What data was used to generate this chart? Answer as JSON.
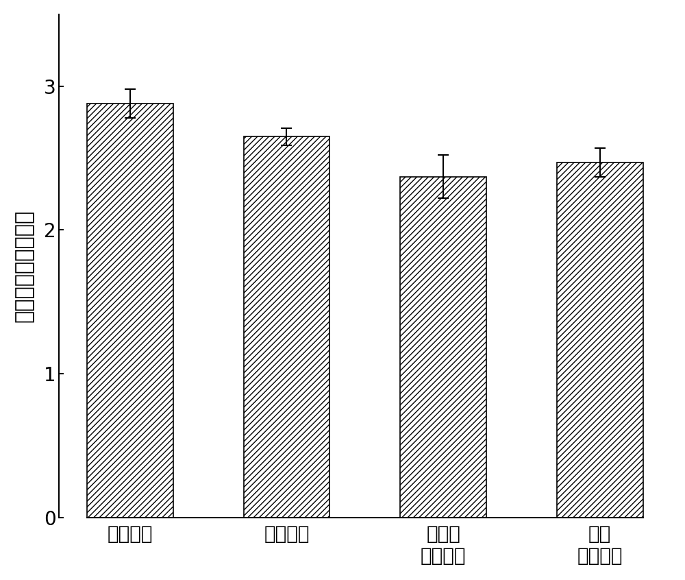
{
  "categories": [
    "大肠杆菌",
    "绿脓杆菌",
    "金黄色\n葡萄球菌",
    "表皮\n葡萄球菌"
  ],
  "values": [
    2.88,
    2.65,
    2.37,
    2.47
  ],
  "errors": [
    0.1,
    0.06,
    0.15,
    0.1
  ],
  "bar_color": "#ffffff",
  "bar_edgecolor": "#000000",
  "hatch": "////",
  "ylabel": "抑菌圈直径（厘米）",
  "ylim": [
    0,
    3.5
  ],
  "yticks": [
    0,
    1,
    2,
    3
  ],
  "bar_width": 0.55,
  "figsize": [
    10.0,
    8.46
  ],
  "dpi": 100,
  "ylabel_fontsize": 22,
  "tick_fontsize": 20,
  "xtick_fontsize": 20,
  "errorbar_capsize": 6,
  "errorbar_linewidth": 1.5,
  "spine_linewidth": 1.5,
  "background_color": "#ffffff"
}
